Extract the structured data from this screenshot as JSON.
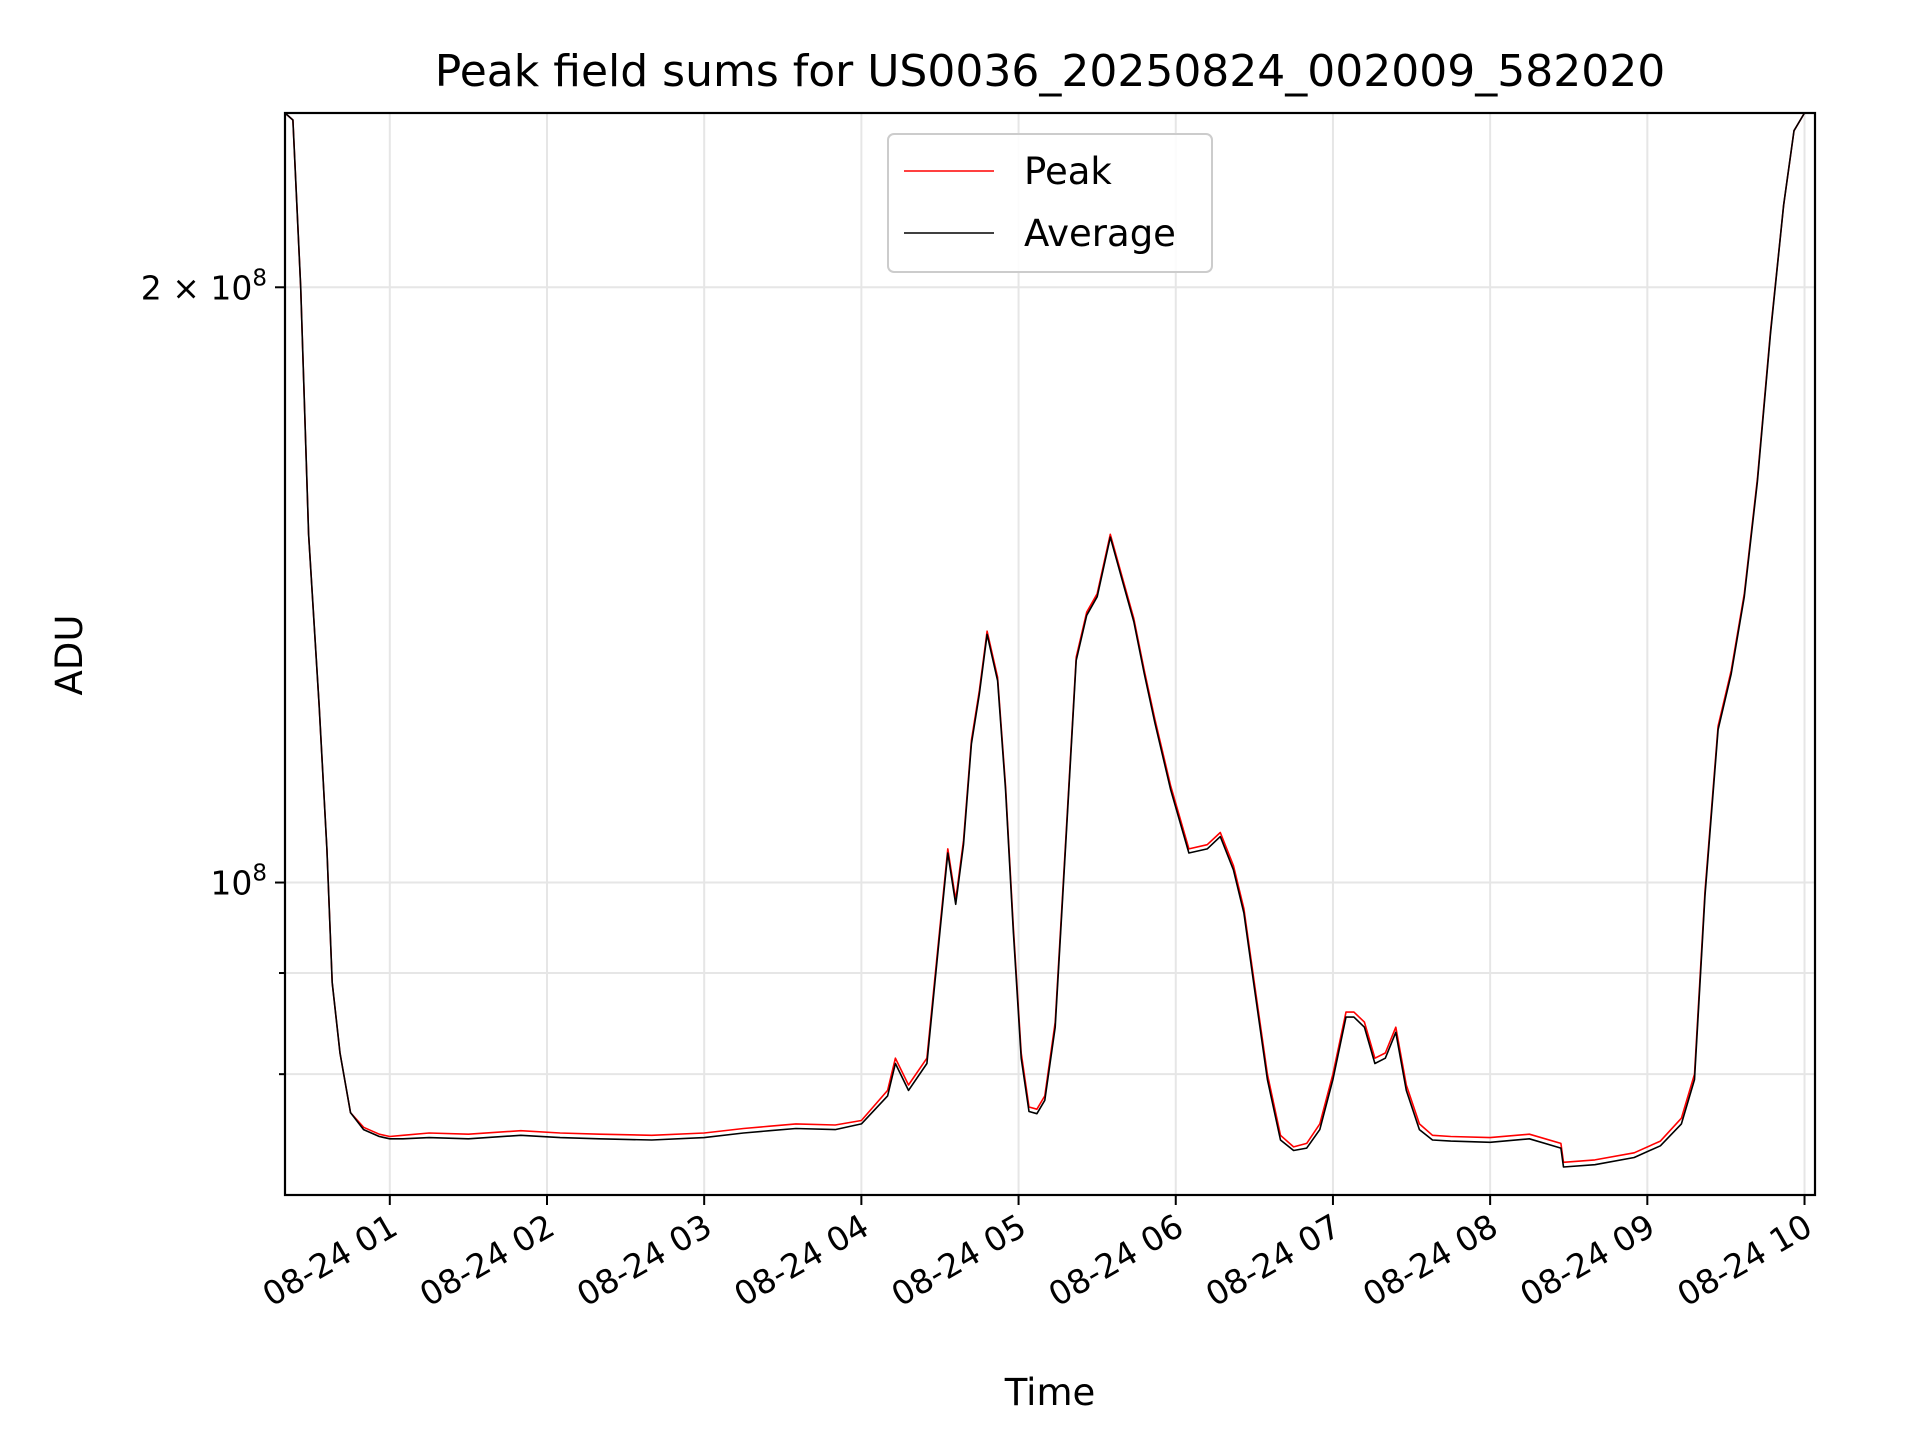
{
  "chart_data": {
    "type": "line",
    "title": "Peak field sums for US0036_20250824_002009_582020",
    "xlabel": "Time",
    "ylabel": "ADU",
    "y_scale": "log",
    "ylim": [
      69500000,
      245000000
    ],
    "xlim": [
      "2025-08-24 00:20",
      "2025-08-24 10:04"
    ],
    "grid": true,
    "legend_position": "top-center",
    "x_ticks": [
      {
        "value": "2025-08-24 01:00",
        "label": "08-24 01"
      },
      {
        "value": "2025-08-24 02:00",
        "label": "08-24 02"
      },
      {
        "value": "2025-08-24 03:00",
        "label": "08-24 03"
      },
      {
        "value": "2025-08-24 04:00",
        "label": "08-24 04"
      },
      {
        "value": "2025-08-24 05:00",
        "label": "08-24 05"
      },
      {
        "value": "2025-08-24 06:00",
        "label": "08-24 06"
      },
      {
        "value": "2025-08-24 07:00",
        "label": "08-24 07"
      },
      {
        "value": "2025-08-24 08:00",
        "label": "08-24 08"
      },
      {
        "value": "2025-08-24 09:00",
        "label": "08-24 09"
      },
      {
        "value": "2025-08-24 10:00",
        "label": "08-24 10"
      }
    ],
    "y_ticks_major": [
      {
        "value": 100000000,
        "base": "10",
        "exp": "8",
        "prefix": ""
      },
      {
        "value": 200000000,
        "base": "10",
        "exp": "8",
        "prefix": "2 × "
      }
    ],
    "y_ticks_minor": [
      80000000,
      90000000
    ],
    "series": [
      {
        "name": "Peak",
        "color": "#ff0000",
        "x": [
          "2025-08-24 00:20",
          "2025-08-24 00:23",
          "2025-08-24 00:26",
          "2025-08-24 00:29",
          "2025-08-24 00:33",
          "2025-08-24 00:36",
          "2025-08-24 00:38",
          "2025-08-24 00:41",
          "2025-08-24 00:45",
          "2025-08-24 00:50",
          "2025-08-24 00:56",
          "2025-08-24 01:00",
          "2025-08-24 01:05",
          "2025-08-24 01:15",
          "2025-08-24 01:30",
          "2025-08-24 01:50",
          "2025-08-24 02:05",
          "2025-08-24 02:20",
          "2025-08-24 02:40",
          "2025-08-24 03:00",
          "2025-08-24 03:15",
          "2025-08-24 03:25",
          "2025-08-24 03:35",
          "2025-08-24 03:50",
          "2025-08-24 04:00",
          "2025-08-24 04:10",
          "2025-08-24 04:13",
          "2025-08-24 04:18",
          "2025-08-24 04:25",
          "2025-08-24 04:30",
          "2025-08-24 04:33",
          "2025-08-24 04:36",
          "2025-08-24 04:39",
          "2025-08-24 04:42",
          "2025-08-24 04:45",
          "2025-08-24 04:48",
          "2025-08-24 04:52",
          "2025-08-24 04:55",
          "2025-08-24 04:58",
          "2025-08-24 05:01",
          "2025-08-24 05:04",
          "2025-08-24 05:07",
          "2025-08-24 05:10",
          "2025-08-24 05:14",
          "2025-08-24 05:18",
          "2025-08-24 05:22",
          "2025-08-24 05:26",
          "2025-08-24 05:30",
          "2025-08-24 05:35",
          "2025-08-24 05:40",
          "2025-08-24 05:44",
          "2025-08-24 05:48",
          "2025-08-24 05:52",
          "2025-08-24 05:58",
          "2025-08-24 06:05",
          "2025-08-24 06:12",
          "2025-08-24 06:17",
          "2025-08-24 06:22",
          "2025-08-24 06:26",
          "2025-08-24 06:30",
          "2025-08-24 06:35",
          "2025-08-24 06:40",
          "2025-08-24 06:45",
          "2025-08-24 06:50",
          "2025-08-24 06:55",
          "2025-08-24 07:00",
          "2025-08-24 07:05",
          "2025-08-24 07:08",
          "2025-08-24 07:12",
          "2025-08-24 07:16",
          "2025-08-24 07:20",
          "2025-08-24 07:24",
          "2025-08-24 07:28",
          "2025-08-24 07:33",
          "2025-08-24 07:38",
          "2025-08-24 07:45",
          "2025-08-24 08:00",
          "2025-08-24 08:15",
          "2025-08-24 08:27",
          "2025-08-24 08:28",
          "2025-08-24 08:40",
          "2025-08-24 08:55",
          "2025-08-24 09:05",
          "2025-08-24 09:13",
          "2025-08-24 09:18",
          "2025-08-24 09:22",
          "2025-08-24 09:27",
          "2025-08-24 09:32",
          "2025-08-24 09:37",
          "2025-08-24 09:42",
          "2025-08-24 09:47",
          "2025-08-24 09:52",
          "2025-08-24 09:56",
          "2025-08-24 10:00",
          "2025-08-24 10:04"
        ],
        "values": [
          245000000,
          243000000,
          200000000,
          150000000,
          123000000,
          104000000,
          89000000,
          82000000,
          76500000,
          75200000,
          74600000,
          74400000,
          74500000,
          74700000,
          74600000,
          74900000,
          74700000,
          74600000,
          74500000,
          74700000,
          75100000,
          75300000,
          75500000,
          75400000,
          75800000,
          78500000,
          81500000,
          79000000,
          81500000,
          95000000,
          104000000,
          98000000,
          105000000,
          118000000,
          125000000,
          134000000,
          127000000,
          112000000,
          95000000,
          82000000,
          77000000,
          76800000,
          78000000,
          85000000,
          105000000,
          130000000,
          137000000,
          140000000,
          150000000,
          142000000,
          136000000,
          128000000,
          121000000,
          112000000,
          104000000,
          104500000,
          106000000,
          102000000,
          97000000,
          89000000,
          80000000,
          74500000,
          73500000,
          73800000,
          75500000,
          80000000,
          86000000,
          86000000,
          85000000,
          81500000,
          82000000,
          84500000,
          79000000,
          75500000,
          74500000,
          74400000,
          74300000,
          74600000,
          73800000,
          72200000,
          72400000,
          73000000,
          74000000,
          76000000,
          80000000,
          99000000,
          120000000,
          128000000,
          140000000,
          160000000,
          190000000,
          220000000,
          240000000,
          245000000,
          245000000
        ]
      },
      {
        "name": "Average",
        "color": "#000000",
        "x": [
          "2025-08-24 00:20",
          "2025-08-24 00:23",
          "2025-08-24 00:26",
          "2025-08-24 00:29",
          "2025-08-24 00:33",
          "2025-08-24 00:36",
          "2025-08-24 00:38",
          "2025-08-24 00:41",
          "2025-08-24 00:45",
          "2025-08-24 00:50",
          "2025-08-24 00:56",
          "2025-08-24 01:00",
          "2025-08-24 01:05",
          "2025-08-24 01:15",
          "2025-08-24 01:30",
          "2025-08-24 01:50",
          "2025-08-24 02:05",
          "2025-08-24 02:20",
          "2025-08-24 02:40",
          "2025-08-24 03:00",
          "2025-08-24 03:15",
          "2025-08-24 03:25",
          "2025-08-24 03:35",
          "2025-08-24 03:50",
          "2025-08-24 04:00",
          "2025-08-24 04:10",
          "2025-08-24 04:13",
          "2025-08-24 04:18",
          "2025-08-24 04:25",
          "2025-08-24 04:30",
          "2025-08-24 04:33",
          "2025-08-24 04:36",
          "2025-08-24 04:39",
          "2025-08-24 04:42",
          "2025-08-24 04:45",
          "2025-08-24 04:48",
          "2025-08-24 04:52",
          "2025-08-24 04:55",
          "2025-08-24 04:58",
          "2025-08-24 05:01",
          "2025-08-24 05:04",
          "2025-08-24 05:07",
          "2025-08-24 05:10",
          "2025-08-24 05:14",
          "2025-08-24 05:18",
          "2025-08-24 05:22",
          "2025-08-24 05:26",
          "2025-08-24 05:30",
          "2025-08-24 05:35",
          "2025-08-24 05:40",
          "2025-08-24 05:44",
          "2025-08-24 05:48",
          "2025-08-24 05:52",
          "2025-08-24 05:58",
          "2025-08-24 06:05",
          "2025-08-24 06:12",
          "2025-08-24 06:17",
          "2025-08-24 06:22",
          "2025-08-24 06:26",
          "2025-08-24 06:30",
          "2025-08-24 06:35",
          "2025-08-24 06:40",
          "2025-08-24 06:45",
          "2025-08-24 06:50",
          "2025-08-24 06:55",
          "2025-08-24 07:00",
          "2025-08-24 07:05",
          "2025-08-24 07:08",
          "2025-08-24 07:12",
          "2025-08-24 07:16",
          "2025-08-24 07:20",
          "2025-08-24 07:24",
          "2025-08-24 07:28",
          "2025-08-24 07:33",
          "2025-08-24 07:38",
          "2025-08-24 07:45",
          "2025-08-24 08:00",
          "2025-08-24 08:15",
          "2025-08-24 08:27",
          "2025-08-24 08:28",
          "2025-08-24 08:40",
          "2025-08-24 08:55",
          "2025-08-24 09:05",
          "2025-08-24 09:13",
          "2025-08-24 09:18",
          "2025-08-24 09:22",
          "2025-08-24 09:27",
          "2025-08-24 09:32",
          "2025-08-24 09:37",
          "2025-08-24 09:42",
          "2025-08-24 09:47",
          "2025-08-24 09:52",
          "2025-08-24 09:56",
          "2025-08-24 10:00",
          "2025-08-24 10:04"
        ],
        "values": [
          245000000,
          243000000,
          200000000,
          150000000,
          123000000,
          104000000,
          89000000,
          82000000,
          76500000,
          75000000,
          74400000,
          74200000,
          74200000,
          74300000,
          74200000,
          74500000,
          74300000,
          74200000,
          74100000,
          74300000,
          74700000,
          74900000,
          75100000,
          75000000,
          75500000,
          78000000,
          81000000,
          78500000,
          81000000,
          94500000,
          103500000,
          97500000,
          104500000,
          117500000,
          124500000,
          133500000,
          126500000,
          111500000,
          94500000,
          81500000,
          76600000,
          76400000,
          77600000,
          84500000,
          104500000,
          129500000,
          136500000,
          139500000,
          149500000,
          141500000,
          135500000,
          127500000,
          120500000,
          111500000,
          103500000,
          104000000,
          105500000,
          101500000,
          96500000,
          88500000,
          79500000,
          74100000,
          73200000,
          73400000,
          75000000,
          79500000,
          85500000,
          85500000,
          84500000,
          81000000,
          81500000,
          84000000,
          78500000,
          75000000,
          74100000,
          74000000,
          73900000,
          74200000,
          73400000,
          71800000,
          72000000,
          72600000,
          73600000,
          75500000,
          79500000,
          98500000,
          119500000,
          127500000,
          139500000,
          159500000,
          189500000,
          220000000,
          240000000,
          245000000,
          245000000
        ]
      }
    ]
  }
}
